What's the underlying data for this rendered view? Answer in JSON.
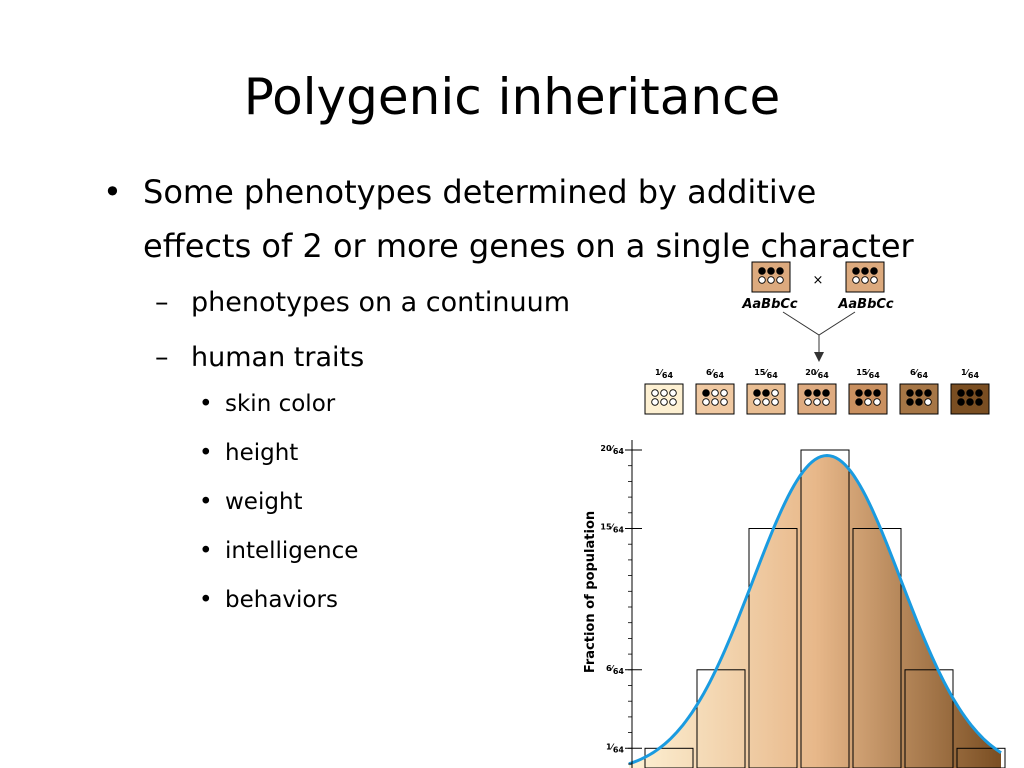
{
  "slide": {
    "title": "Polygenic inheritance",
    "bullet_main": "Some phenotypes determined by additive effects of 2 or more genes on a single character",
    "sub_bullets": [
      {
        "text": "phenotypes on a continuum"
      },
      {
        "text": "human traits",
        "items": [
          "skin color",
          "height",
          "weight",
          "intelligence",
          "behaviors"
        ]
      }
    ]
  },
  "figure": {
    "parent_genotype_left": "AaBbCc",
    "parent_genotype_right": "AaBbCc",
    "cross_symbol": "×",
    "ylabel": "Fraction of population",
    "classes": [
      {
        "num": "1",
        "den": "64",
        "dark_dots": 0,
        "color": "#fdf0d2"
      },
      {
        "num": "6",
        "den": "64",
        "dark_dots": 1,
        "color": "#f0c9a2"
      },
      {
        "num": "15",
        "den": "64",
        "dark_dots": 2,
        "color": "#e9be93"
      },
      {
        "num": "20",
        "den": "64",
        "dark_dots": 3,
        "color": "#deab80"
      },
      {
        "num": "15",
        "den": "64",
        "dark_dots": 4,
        "color": "#c99060"
      },
      {
        "num": "6",
        "den": "64",
        "dark_dots": 5,
        "color": "#a67646"
      },
      {
        "num": "1",
        "den": "64",
        "dark_dots": 6,
        "color": "#7a4e22"
      }
    ],
    "y_ticks": [
      {
        "num": "1",
        "den": "64",
        "value": 1
      },
      {
        "num": "6",
        "den": "64",
        "value": 6
      },
      {
        "num": "15",
        "den": "64",
        "value": 15
      },
      {
        "num": "20",
        "den": "64",
        "value": 20
      }
    ],
    "parent_color": "#dcaa7e",
    "curve_color": "#1a9be0",
    "gradient_colors": [
      "#fdf1d4",
      "#e8b88a",
      "#7a4e22"
    ]
  },
  "chart_data": {
    "type": "bar",
    "categories": [
      "1/64",
      "6/64",
      "15/64",
      "20/64",
      "15/64",
      "6/64",
      "1/64"
    ],
    "values": [
      1,
      6,
      15,
      20,
      15,
      6,
      1
    ],
    "ylabel": "Fraction of population",
    "ylim": [
      0,
      20
    ]
  }
}
